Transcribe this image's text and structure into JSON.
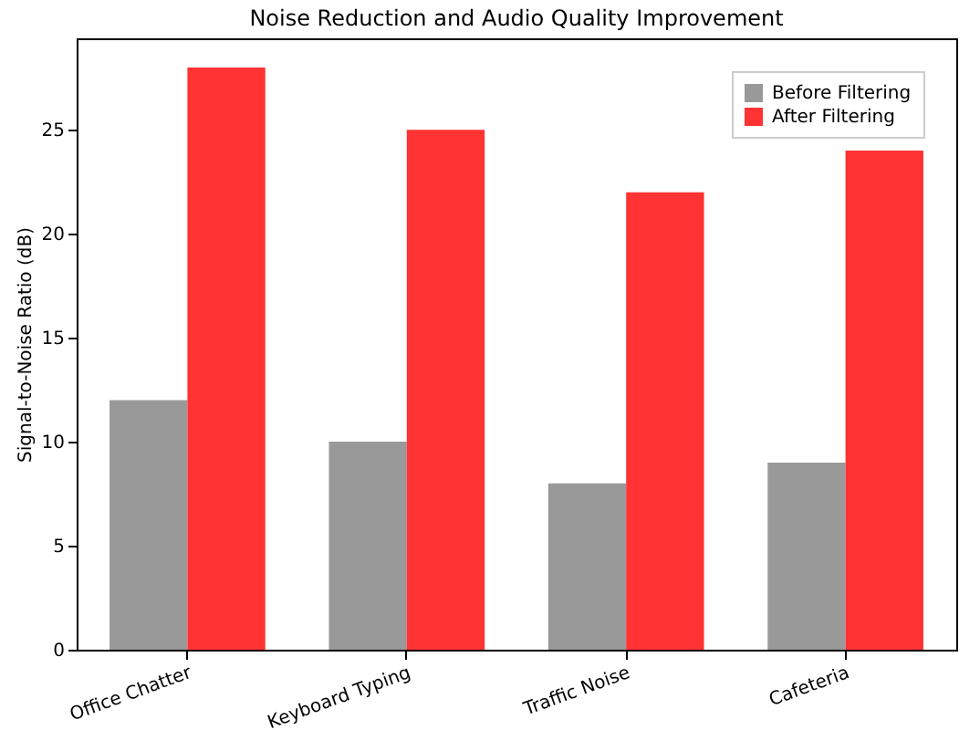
{
  "chart_data": {
    "type": "bar",
    "title": "Noise Reduction and Audio Quality Improvement",
    "ylabel": "Signal-to-Noise Ratio (dB)",
    "categories": [
      "Office Chatter",
      "Keyboard Typing",
      "Traffic Noise",
      "Cafeteria"
    ],
    "series": [
      {
        "name": "Before Filtering",
        "color": "#999999",
        "values": [
          12,
          10,
          8,
          9
        ]
      },
      {
        "name": "After Filtering",
        "color": "#ff3333",
        "values": [
          28,
          25,
          22,
          24
        ]
      }
    ],
    "ylim": [
      0,
      29.4
    ],
    "yticks": [
      0,
      5,
      10,
      15,
      20,
      25
    ],
    "grid": false,
    "legend": "top right"
  }
}
